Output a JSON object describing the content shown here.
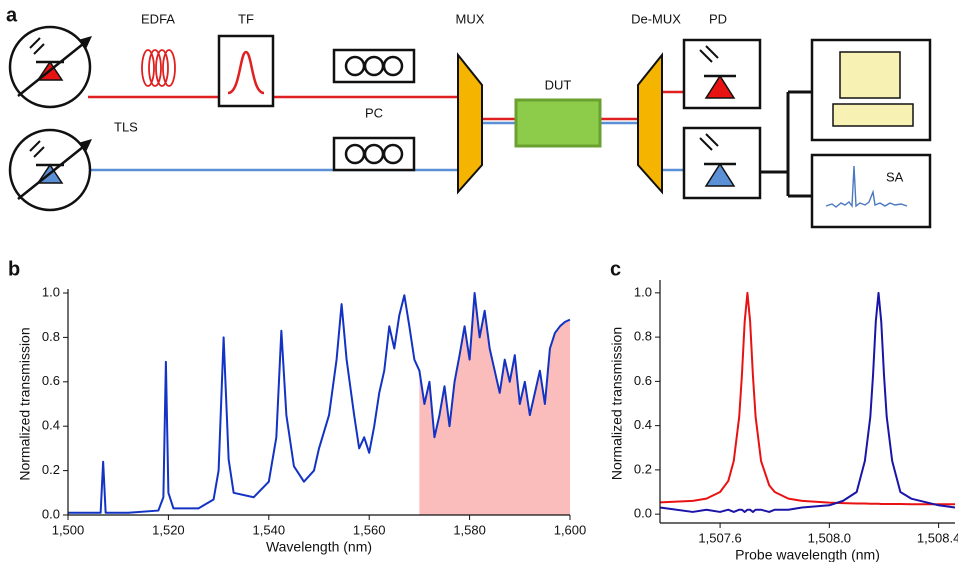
{
  "diagram": {
    "panel_label": "a",
    "labels": {
      "edfa": "EDFA",
      "tf": "TF",
      "pc": "PC",
      "mux": "MUX",
      "dut": "DUT",
      "demux": "De-MUX",
      "pd": "PD",
      "tls": "TLS",
      "sa": "SA"
    }
  },
  "chart_data": [
    {
      "type": "line",
      "panel_label": "b",
      "x_label": "Wavelength (nm)",
      "y_label": "Normalized transmission",
      "x": [
        1500,
        1506.5,
        1507,
        1507.5,
        1512,
        1518,
        1519,
        1519.5,
        1520,
        1521,
        1526,
        1529,
        1530,
        1531,
        1532,
        1533,
        1537,
        1540,
        1541.5,
        1542.5,
        1543.5,
        1545,
        1547,
        1549,
        1550,
        1552,
        1553.5,
        1554.5,
        1555.5,
        1557,
        1558,
        1559,
        1560,
        1561,
        1562,
        1563,
        1564,
        1565,
        1566,
        1567,
        1568,
        1569,
        1570,
        1571,
        1572,
        1573,
        1574,
        1575,
        1576,
        1577,
        1578,
        1579,
        1580,
        1581,
        1582,
        1583,
        1584,
        1585,
        1586,
        1587,
        1588,
        1589,
        1590,
        1591,
        1592,
        1593,
        1594,
        1595,
        1596,
        1597,
        1598,
        1599,
        1600
      ],
      "series": [
        {
          "color": "#1233c4",
          "values": [
            0.01,
            0.01,
            0.24,
            0.01,
            0.01,
            0.02,
            0.08,
            0.69,
            0.1,
            0.03,
            0.03,
            0.07,
            0.2,
            0.8,
            0.25,
            0.1,
            0.08,
            0.15,
            0.35,
            0.83,
            0.45,
            0.22,
            0.15,
            0.2,
            0.3,
            0.45,
            0.7,
            0.95,
            0.7,
            0.45,
            0.3,
            0.35,
            0.28,
            0.4,
            0.55,
            0.65,
            0.85,
            0.75,
            0.9,
            0.99,
            0.85,
            0.7,
            0.65,
            0.5,
            0.6,
            0.35,
            0.45,
            0.58,
            0.4,
            0.6,
            0.72,
            0.85,
            0.7,
            1.0,
            0.8,
            0.92,
            0.75,
            0.65,
            0.55,
            0.7,
            0.6,
            0.72,
            0.5,
            0.6,
            0.45,
            0.55,
            0.65,
            0.5,
            0.75,
            0.82,
            0.85,
            0.87,
            0.88
          ]
        }
      ],
      "fill_range": [
        1570,
        1600
      ],
      "fill_color": "#fbbcbc",
      "xlim": [
        1500,
        1600
      ],
      "xticks": [
        {
          "value": 1500,
          "label": "1,500"
        },
        {
          "value": 1520,
          "label": "1,520"
        },
        {
          "value": 1540,
          "label": "1,540"
        },
        {
          "value": 1560,
          "label": "1,560"
        },
        {
          "value": 1580,
          "label": "1,580"
        },
        {
          "value": 1600,
          "label": "1,600"
        }
      ],
      "ylim": [
        0,
        1.0
      ],
      "yticks": [
        {
          "value": 0,
          "label": "0.0"
        },
        0.2,
        0.4,
        0.6,
        0.8,
        {
          "value": 1,
          "label": "1.0"
        }
      ]
    },
    {
      "type": "line",
      "panel_label": "c",
      "x_label": "Probe wavelength (nm)",
      "y_label": "Normalized transmission",
      "x": [
        1507.38,
        1507.5,
        1507.55,
        1507.6,
        1507.63,
        1507.65,
        1507.67,
        1507.68,
        1507.69,
        1507.7,
        1507.71,
        1507.72,
        1507.73,
        1507.75,
        1507.78,
        1507.8,
        1507.85,
        1507.9,
        1508.0,
        1508.05,
        1508.1,
        1508.13,
        1508.15,
        1508.16,
        1508.17,
        1508.18,
        1508.19,
        1508.2,
        1508.21,
        1508.23,
        1508.26,
        1508.3,
        1508.4,
        1508.46
      ],
      "series": [
        {
          "color": "#e81212",
          "values": [
            0.053,
            0.06,
            0.07,
            0.1,
            0.15,
            0.24,
            0.44,
            0.63,
            0.87,
            1.0,
            0.87,
            0.63,
            0.44,
            0.24,
            0.13,
            0.1,
            0.07,
            0.06,
            0.052,
            0.05,
            0.048,
            0.048,
            0.047,
            0.047,
            0.047,
            0.047,
            0.046,
            0.046,
            0.046,
            0.046,
            0.046,
            0.045,
            0.045,
            0.045
          ]
        },
        {
          "color": "#1a14a8",
          "values": [
            0.03,
            0.01,
            0.02,
            0.01,
            0.02,
            0.01,
            0.02,
            0.02,
            0.01,
            0.02,
            0.02,
            0.01,
            0.02,
            0.02,
            0.01,
            0.02,
            0.02,
            0.03,
            0.04,
            0.06,
            0.1,
            0.24,
            0.44,
            0.63,
            0.87,
            1.0,
            0.87,
            0.63,
            0.44,
            0.24,
            0.1,
            0.07,
            0.04,
            0.03
          ]
        }
      ],
      "xlim": [
        1507.38,
        1508.46
      ],
      "xticks": [
        {
          "value": 1507.6,
          "label": "1,507.6"
        },
        {
          "value": 1508.0,
          "label": "1,508.0"
        },
        {
          "value": 1508.4,
          "label": "1,508.4"
        }
      ],
      "ylim": [
        -0.04,
        1.04
      ],
      "yticks": [
        {
          "value": 0,
          "label": "0.0"
        },
        0.2,
        0.4,
        0.6,
        0.8,
        {
          "value": 1,
          "label": "1.0"
        }
      ]
    }
  ]
}
